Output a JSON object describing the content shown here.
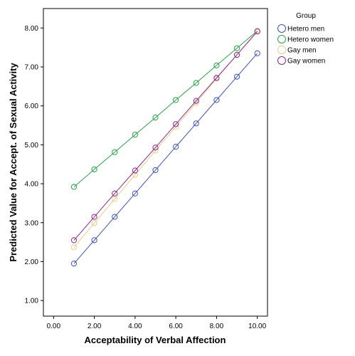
{
  "chart_data": {
    "type": "line",
    "title": "",
    "xlabel": "Acceptability of Verbal Affection",
    "ylabel": "Predicted Value for Accept. of Sexual Activity",
    "xlim": [
      -0.5,
      10.5
    ],
    "ylim": [
      0.6,
      8.5
    ],
    "x_ticks": [
      0,
      2,
      4,
      6,
      8,
      10
    ],
    "x_tick_labels": [
      "0.00",
      "2.00",
      "4.00",
      "6.00",
      "8.00",
      "10.00"
    ],
    "y_ticks": [
      1,
      2,
      3,
      4,
      5,
      6,
      7,
      8
    ],
    "y_tick_labels": [
      "1.00",
      "2.00",
      "3.00",
      "4.00",
      "5.00",
      "6.00",
      "7.00",
      "8.00"
    ],
    "grid": false,
    "legend": {
      "title": "Group",
      "placement": "right"
    },
    "x": [
      1,
      2,
      3,
      4,
      5,
      6,
      7,
      8,
      9,
      10
    ],
    "series": [
      {
        "name": "Hetero men",
        "color": "#3c50b4",
        "values": [
          1.95,
          2.55,
          3.15,
          3.75,
          4.35,
          4.95,
          5.55,
          6.15,
          6.75,
          7.35
        ]
      },
      {
        "name": "Hetero women",
        "color": "#28a046",
        "values": [
          3.92,
          4.37,
          4.81,
          5.26,
          5.7,
          6.15,
          6.59,
          7.04,
          7.48,
          7.93
        ]
      },
      {
        "name": "Gay men",
        "color": "#e6cd8c",
        "values": [
          2.37,
          2.99,
          3.61,
          4.23,
          4.85,
          5.46,
          6.08,
          6.7,
          7.31,
          7.93
        ]
      },
      {
        "name": "Gay women",
        "color": "#8c288c",
        "values": [
          2.55,
          3.15,
          3.75,
          4.34,
          4.93,
          5.53,
          6.13,
          6.72,
          7.31,
          7.91
        ]
      }
    ]
  }
}
